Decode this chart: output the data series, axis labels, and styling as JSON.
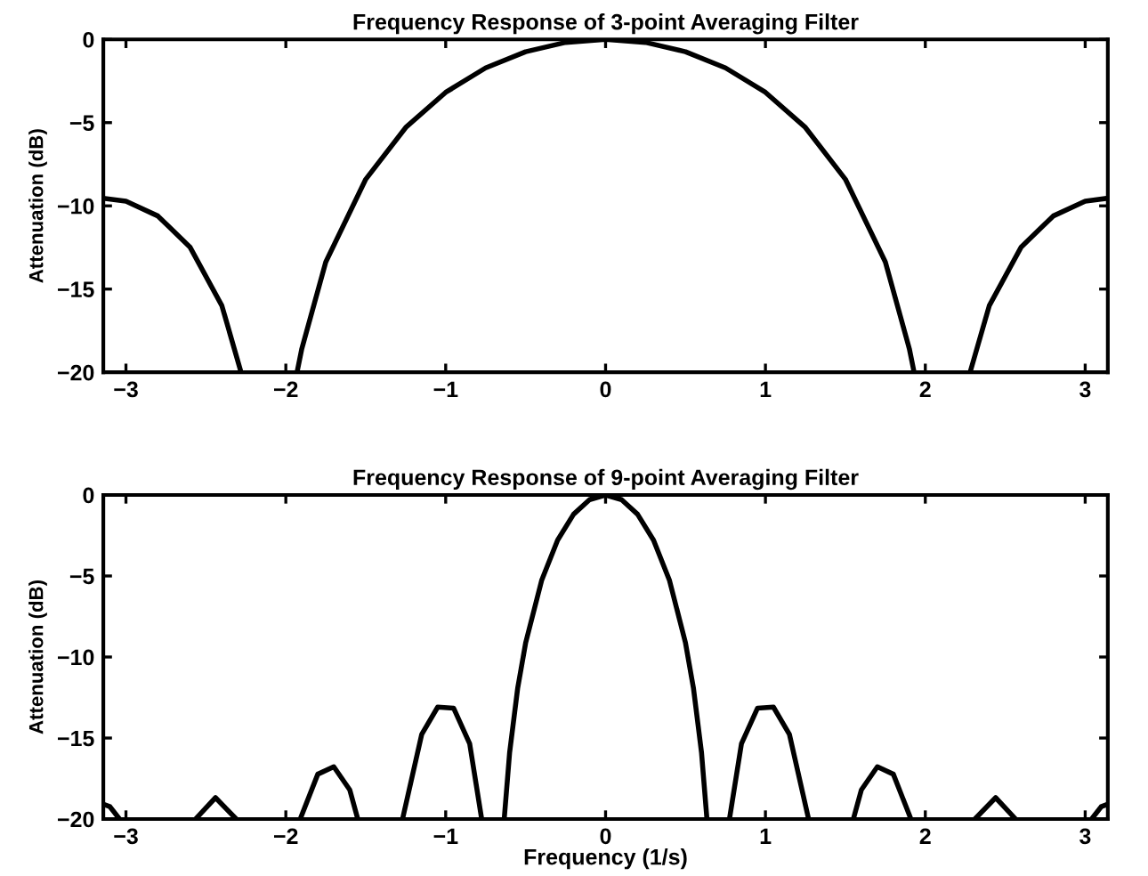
{
  "chart_data": [
    {
      "type": "line",
      "title": "Frequency Response of 3-point Averaging Filter",
      "ylabel": "Attenuation (dB)",
      "xlim": [
        -3.1416,
        3.1416
      ],
      "ylim": [
        -20,
        0
      ],
      "xticks": [
        -3,
        -2,
        -1,
        0,
        1,
        2,
        3
      ],
      "yticks": [
        -20,
        -15,
        -10,
        -5,
        0
      ],
      "grid": false,
      "line_style": "solid",
      "series": [
        {
          "color": "#000000",
          "x": [
            -3.1416,
            -3.0,
            -2.8,
            -2.6,
            -2.4,
            -2.28,
            -2.1,
            -1.93,
            -1.9,
            -1.75,
            -1.5,
            -1.25,
            -1.0,
            -0.75,
            -0.5,
            -0.25,
            0,
            0.25,
            0.5,
            0.75,
            1.0,
            1.25,
            1.5,
            1.75,
            1.9,
            1.93,
            2.1,
            2.28,
            2.4,
            2.6,
            2.8,
            3.0,
            3.1416
          ],
          "values": [
            -9.54,
            -9.72,
            -10.61,
            -12.47,
            -16.0,
            -20,
            null,
            -20,
            -18.58,
            -13.37,
            -8.4,
            -5.29,
            -3.18,
            -1.71,
            -0.74,
            -0.18,
            0,
            -0.18,
            -0.74,
            -1.71,
            -3.18,
            -5.29,
            -8.4,
            -13.37,
            -18.58,
            -20,
            null,
            -20,
            -16.0,
            -12.47,
            -10.61,
            -9.72,
            -9.54
          ]
        }
      ]
    },
    {
      "type": "line",
      "title": "Frequency Response of 9-point Averaging Filter",
      "xlabel": "Frequency (1/s)",
      "ylabel": "Attenuation (dB)",
      "xlim": [
        -3.1416,
        3.1416
      ],
      "ylim": [
        -20,
        0
      ],
      "xticks": [
        -3,
        -2,
        -1,
        0,
        1,
        2,
        3
      ],
      "yticks": [
        -20,
        -15,
        -10,
        -5,
        0
      ],
      "grid": false,
      "line_style": "solid",
      "series": [
        {
          "color": "#000000",
          "x": [
            -3.1416,
            -3.1,
            -3.04,
            -2.8,
            -2.565,
            -2.44,
            -2.31,
            -2.2,
            -1.91,
            -1.8,
            -1.7,
            -1.6,
            -1.55,
            -1.4,
            -1.27,
            -1.15,
            -1.05,
            -0.95,
            -0.85,
            -0.775,
            -0.7,
            -0.634,
            -0.6,
            -0.55,
            -0.5,
            -0.4,
            -0.3,
            -0.2,
            -0.1,
            0,
            0.1,
            0.2,
            0.3,
            0.4,
            0.5,
            0.55,
            0.6,
            0.634,
            0.7,
            0.775,
            0.85,
            0.95,
            1.05,
            1.15,
            1.27,
            1.4,
            1.55,
            1.6,
            1.7,
            1.8,
            1.91,
            2.2,
            2.31,
            2.44,
            2.565,
            2.8,
            3.04,
            3.1,
            3.1416
          ],
          "values": [
            -19.08,
            -19.24,
            -20,
            null,
            -20,
            -18.68,
            -20,
            null,
            -20,
            -17.23,
            -16.77,
            -18.2,
            -20,
            null,
            -20,
            -14.77,
            -13.09,
            -13.16,
            -15.35,
            -20,
            null,
            -20,
            -15.88,
            -11.94,
            -9.13,
            -5.28,
            -2.79,
            -1.19,
            -0.29,
            0,
            -0.29,
            -1.19,
            -2.79,
            -5.28,
            -9.13,
            -11.94,
            -15.88,
            -20,
            null,
            -20,
            -15.35,
            -13.16,
            -13.09,
            -14.77,
            -20,
            null,
            -20,
            -18.2,
            -16.77,
            -17.23,
            -20,
            null,
            -20,
            -18.68,
            -20,
            null,
            -20,
            -19.24,
            -19.08
          ]
        }
      ]
    }
  ]
}
